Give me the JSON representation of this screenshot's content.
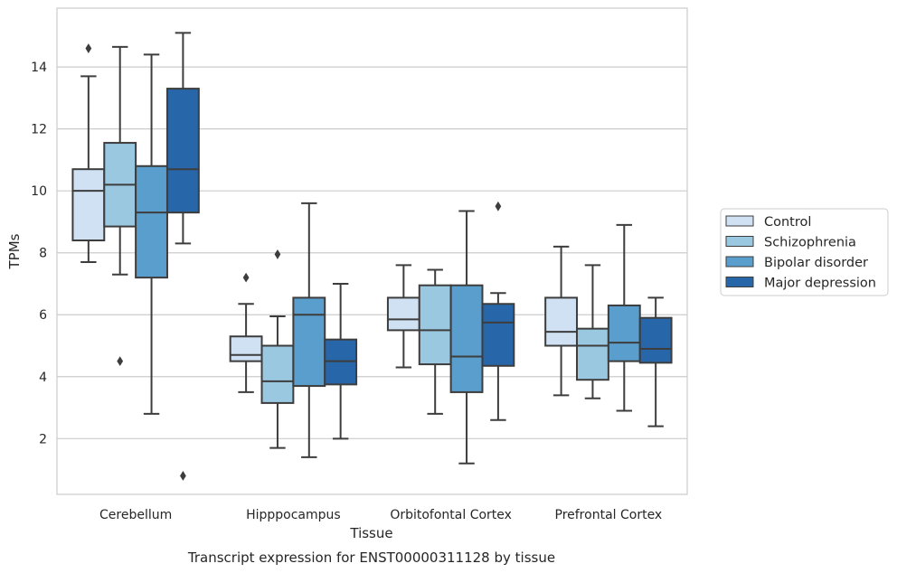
{
  "chart_data": {
    "type": "box",
    "xlabel": "Tissue",
    "ylabel": "TPMs",
    "caption": "Transcript expression for ENST00000311128 by tissue",
    "ylim": [
      0.2,
      15.9
    ],
    "yticks": [
      2,
      4,
      6,
      8,
      10,
      12,
      14
    ],
    "grid": "horizontal",
    "legend_position": "right",
    "categories": [
      "Cerebellum",
      "Hipppocampus",
      "Orbitofontal Cortex",
      "Prefrontal Cortex"
    ],
    "series": [
      {
        "name": "Control",
        "color": "#cfe1f2",
        "boxes": [
          {
            "whisker_low": 7.7,
            "q1": 8.4,
            "median": 10.0,
            "q3": 10.7,
            "whisker_high": 13.7,
            "outliers": [
              14.6
            ]
          },
          {
            "whisker_low": 3.5,
            "q1": 4.5,
            "median": 4.7,
            "q3": 5.3,
            "whisker_high": 6.35,
            "outliers": [
              7.2
            ]
          },
          {
            "whisker_low": 4.3,
            "q1": 5.5,
            "median": 5.85,
            "q3": 6.55,
            "whisker_high": 7.6,
            "outliers": []
          },
          {
            "whisker_low": 3.4,
            "q1": 5.0,
            "median": 5.45,
            "q3": 6.55,
            "whisker_high": 8.2,
            "outliers": []
          }
        ]
      },
      {
        "name": "Schizophrenia",
        "color": "#9ac8e0",
        "boxes": [
          {
            "whisker_low": 7.3,
            "q1": 8.85,
            "median": 10.2,
            "q3": 11.55,
            "whisker_high": 14.65,
            "outliers": [
              4.5
            ]
          },
          {
            "whisker_low": 1.7,
            "q1": 3.15,
            "median": 3.85,
            "q3": 5.0,
            "whisker_high": 5.95,
            "outliers": [
              7.95
            ]
          },
          {
            "whisker_low": 2.8,
            "q1": 4.4,
            "median": 5.5,
            "q3": 6.95,
            "whisker_high": 7.45,
            "outliers": []
          },
          {
            "whisker_low": 3.3,
            "q1": 3.9,
            "median": 5.0,
            "q3": 5.55,
            "whisker_high": 7.6,
            "outliers": []
          }
        ]
      },
      {
        "name": "Bipolar disorder",
        "color": "#5a9ecd",
        "boxes": [
          {
            "whisker_low": 2.8,
            "q1": 7.2,
            "median": 9.3,
            "q3": 10.8,
            "whisker_high": 14.4,
            "outliers": []
          },
          {
            "whisker_low": 1.4,
            "q1": 3.7,
            "median": 6.0,
            "q3": 6.55,
            "whisker_high": 9.6,
            "outliers": []
          },
          {
            "whisker_low": 1.2,
            "q1": 3.5,
            "median": 4.65,
            "q3": 6.95,
            "whisker_high": 9.35,
            "outliers": []
          },
          {
            "whisker_low": 2.9,
            "q1": 4.5,
            "median": 5.1,
            "q3": 6.3,
            "whisker_high": 8.9,
            "outliers": []
          }
        ]
      },
      {
        "name": "Major depression",
        "color": "#2766a8",
        "boxes": [
          {
            "whisker_low": 8.3,
            "q1": 9.3,
            "median": 10.7,
            "q3": 13.3,
            "whisker_high": 15.1,
            "outliers": [
              0.8
            ]
          },
          {
            "whisker_low": 2.0,
            "q1": 3.75,
            "median": 4.5,
            "q3": 5.2,
            "whisker_high": 7.0,
            "outliers": []
          },
          {
            "whisker_low": 2.6,
            "q1": 4.35,
            "median": 5.75,
            "q3": 6.35,
            "whisker_high": 6.7,
            "outliers": [
              9.5
            ]
          },
          {
            "whisker_low": 2.4,
            "q1": 4.45,
            "median": 4.9,
            "q3": 5.9,
            "whisker_high": 6.55,
            "outliers": []
          }
        ]
      }
    ]
  }
}
